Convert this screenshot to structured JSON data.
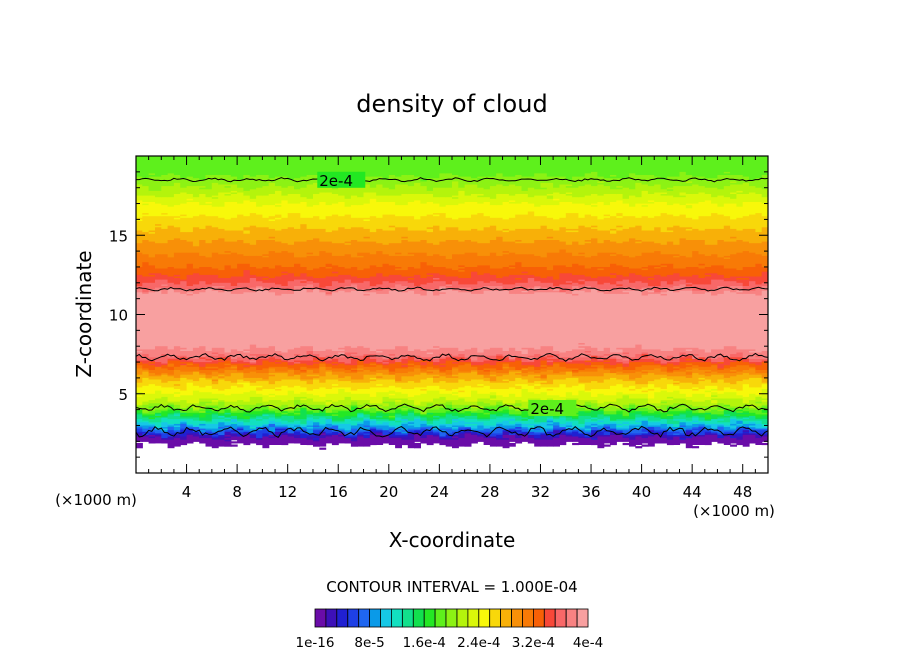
{
  "chart_data": {
    "type": "contour",
    "title": "density of cloud",
    "xlabel": "X-coordinate",
    "ylabel": "Z-coordinate",
    "x_unit": "(×1000 m)",
    "y_unit": "(×1000 m)",
    "xlim": [
      0,
      50
    ],
    "ylim": [
      0,
      20
    ],
    "x_ticks": [
      4,
      8,
      12,
      16,
      20,
      24,
      28,
      32,
      36,
      40,
      44,
      48
    ],
    "y_ticks": [
      5,
      10,
      15
    ],
    "contour_interval_text": "CONTOUR INTERVAL = 1.000E-04",
    "contour_label": "2e-4",
    "contour_lines": [
      {
        "label": "2e-4",
        "z": 18.5
      },
      {
        "label": "",
        "z": 11.6
      },
      {
        "label": "",
        "z": 7.3
      },
      {
        "label": "2e-4",
        "z": 4.1
      },
      {
        "label": "",
        "z": 2.6
      }
    ],
    "profile": [
      {
        "z": 20.0,
        "value": 0.00018
      },
      {
        "z": 19.0,
        "value": 0.000185
      },
      {
        "z": 18.0,
        "value": 0.00021
      },
      {
        "z": 17.0,
        "value": 0.00024
      },
      {
        "z": 16.0,
        "value": 0.00026
      },
      {
        "z": 15.0,
        "value": 0.00028
      },
      {
        "z": 14.0,
        "value": 0.0003
      },
      {
        "z": 13.0,
        "value": 0.00032
      },
      {
        "z": 12.3,
        "value": 0.00034
      },
      {
        "z": 11.8,
        "value": 0.00036
      },
      {
        "z": 11.3,
        "value": 0.00039
      },
      {
        "z": 10.0,
        "value": 0.00039
      },
      {
        "z": 8.0,
        "value": 0.00039
      },
      {
        "z": 7.4,
        "value": 0.00037
      },
      {
        "z": 7.0,
        "value": 0.00034
      },
      {
        "z": 6.5,
        "value": 0.00031
      },
      {
        "z": 6.0,
        "value": 0.00028
      },
      {
        "z": 5.5,
        "value": 0.00026
      },
      {
        "z": 5.0,
        "value": 0.00024
      },
      {
        "z": 4.5,
        "value": 0.00022
      },
      {
        "z": 4.0,
        "value": 0.00019
      },
      {
        "z": 3.5,
        "value": 0.00014
      },
      {
        "z": 3.0,
        "value": 0.0001
      },
      {
        "z": 2.6,
        "value": 6e-05
      },
      {
        "z": 2.3,
        "value": 2e-05
      },
      {
        "z": 2.0,
        "value": 1e-07
      },
      {
        "z": 1.8,
        "value": null
      }
    ],
    "colorbar": {
      "colors": [
        "#6a0ca8",
        "#3d10b8",
        "#2020d2",
        "#1e40e6",
        "#1f66f0",
        "#0a9ae8",
        "#16c8e6",
        "#12e0c0",
        "#12e08c",
        "#12e04e",
        "#24e824",
        "#5ef01c",
        "#8cf214",
        "#b4f40c",
        "#daf80a",
        "#f8f80a",
        "#f8d80a",
        "#f8b008",
        "#f89008",
        "#f87a06",
        "#f86006",
        "#f84838",
        "#f86868",
        "#f88282",
        "#f8a0a0"
      ],
      "tick_labels": [
        "1e-16",
        "8e-5",
        "1.6e-4",
        "2.4e-4",
        "3.2e-4",
        "4e-4"
      ]
    }
  }
}
